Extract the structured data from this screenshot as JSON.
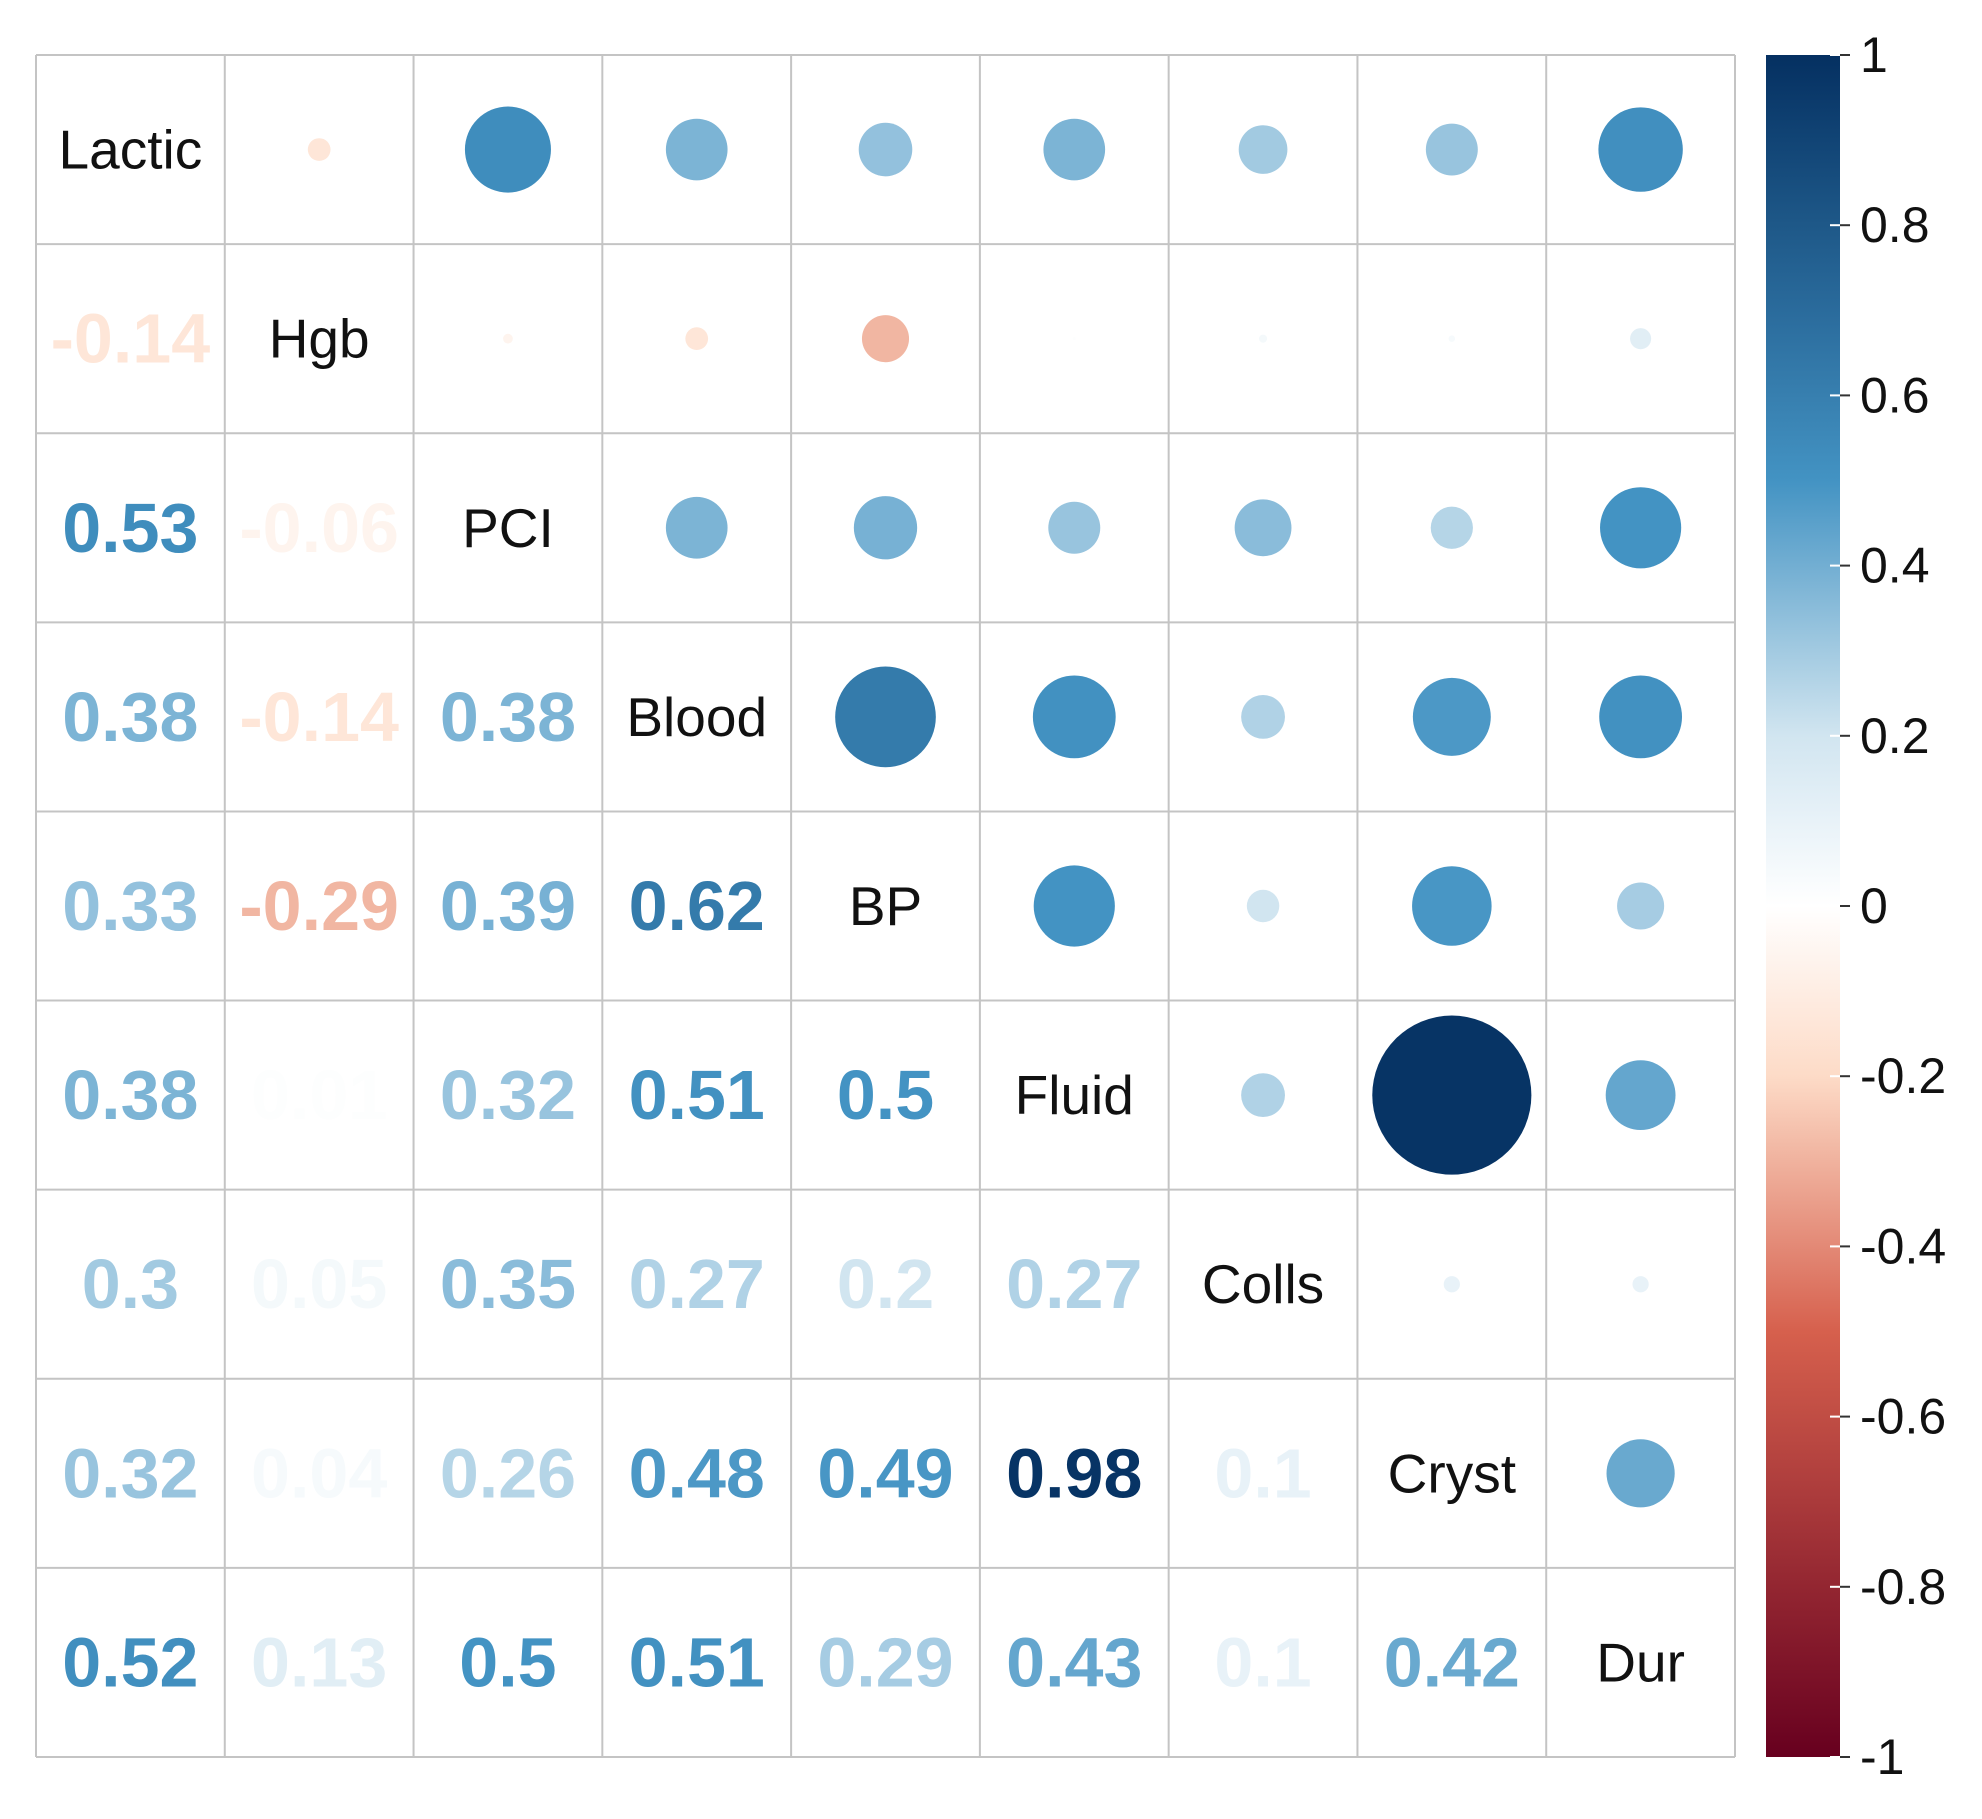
{
  "chart_data": {
    "type": "heatmap",
    "subtype": "correlation-matrix",
    "upper_triangle": "circles",
    "lower_triangle": "numbers",
    "variables": [
      "Lactic",
      "Hgb",
      "PCI",
      "Blood",
      "BP",
      "Fluid",
      "Colls",
      "Cryst",
      "Dur"
    ],
    "matrix": [
      [
        1,
        -0.14,
        0.53,
        0.38,
        0.33,
        0.38,
        0.3,
        0.32,
        0.52
      ],
      [
        -0.14,
        1,
        -0.06,
        -0.14,
        -0.29,
        0.01,
        0.05,
        0.04,
        0.13
      ],
      [
        0.53,
        -0.06,
        1,
        0.38,
        0.39,
        0.32,
        0.35,
        0.26,
        0.5
      ],
      [
        0.38,
        -0.14,
        0.38,
        1,
        0.62,
        0.51,
        0.27,
        0.48,
        0.51
      ],
      [
        0.33,
        -0.29,
        0.39,
        0.62,
        1,
        0.5,
        0.2,
        0.49,
        0.29
      ],
      [
        0.38,
        0.01,
        0.32,
        0.51,
        0.5,
        1,
        0.27,
        0.98,
        0.43
      ],
      [
        0.3,
        0.05,
        0.35,
        0.27,
        0.2,
        0.27,
        1,
        0.1,
        0.1
      ],
      [
        0.32,
        0.04,
        0.26,
        0.48,
        0.49,
        0.98,
        0.1,
        1,
        0.42
      ],
      [
        0.52,
        0.13,
        0.5,
        0.51,
        0.29,
        0.43,
        0.1,
        0.42,
        1
      ]
    ],
    "lower_labels": [
      [],
      [
        "-0.14"
      ],
      [
        "0.53",
        "-0.06"
      ],
      [
        "0.38",
        "-0.14",
        "0.38"
      ],
      [
        "0.33",
        "-0.29",
        "0.39",
        "0.62"
      ],
      [
        "0.38",
        "0.01",
        "0.32",
        "0.51",
        "0.5"
      ],
      [
        "0.3",
        "0.05",
        "0.35",
        "0.27",
        "0.2",
        "0.27"
      ],
      [
        "0.32",
        "0.04",
        "0.26",
        "0.48",
        "0.49",
        "0.98",
        "0.1"
      ],
      [
        "0.52",
        "0.13",
        "0.5",
        "0.51",
        "0.29",
        "0.43",
        "0.1",
        "0.42"
      ]
    ],
    "colorbar": {
      "range": [
        -1,
        1
      ],
      "ticks": [
        "1",
        "0.8",
        "0.6",
        "0.4",
        "0.2",
        "0",
        "-0.2",
        "-0.4",
        "-0.6",
        "-0.8",
        "-1"
      ],
      "tick_values": [
        1,
        0.8,
        0.6,
        0.4,
        0.2,
        0,
        -0.2,
        -0.4,
        -0.6,
        -0.8,
        -1
      ],
      "placement": "right"
    },
    "palette": {
      "negative_strong": "#67001f",
      "negative_mid": "#d6604d",
      "negative_light": "#fddbc7",
      "neutral": "#ffffff",
      "positive_light": "#d1e5f0",
      "positive_mid": "#4393c3",
      "positive_strong": "#053061"
    }
  }
}
